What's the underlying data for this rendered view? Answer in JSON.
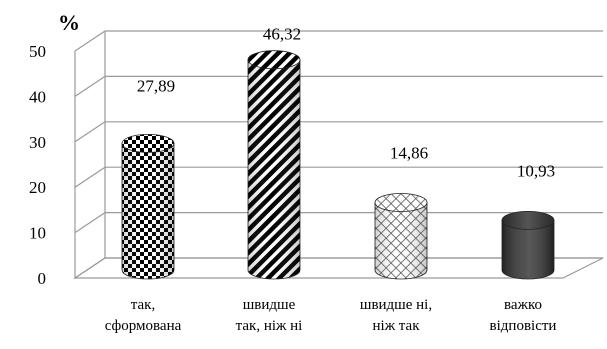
{
  "chart_data": {
    "type": "bar",
    "style": "3d-cylinder",
    "unit_label": "%",
    "categories": [
      [
        "так,",
        "сформована"
      ],
      [
        "швидше",
        "так, ніж ні"
      ],
      [
        "швидше ні,",
        "ніж так"
      ],
      [
        "важко",
        "відповісти"
      ]
    ],
    "values": [
      27.89,
      46.32,
      14.86,
      10.93
    ],
    "value_labels": [
      "27,89",
      "46,32",
      "14,86",
      "10,93"
    ],
    "yticks": [
      "0",
      "10",
      "20",
      "30",
      "40",
      "50"
    ],
    "ylim": [
      0,
      50
    ],
    "grid": true,
    "fills": [
      "checkerboard",
      "diagonal-stripes",
      "crosshatch",
      "solid-dark"
    ],
    "colors": {
      "dark_fill": "#3a3a3a",
      "grid": "#9a9a9a"
    }
  }
}
